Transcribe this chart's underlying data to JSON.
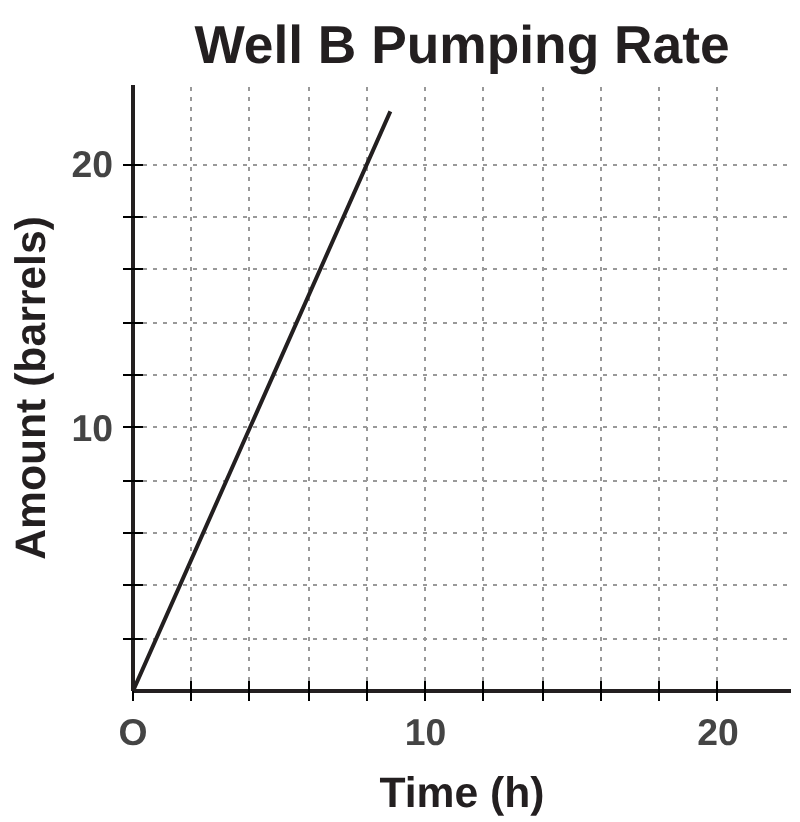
{
  "chart_data": {
    "type": "line",
    "title": "Well B Pumping Rate",
    "xlabel": "Time (h)",
    "ylabel": "Amount (barrels)",
    "x": [
      0,
      4,
      8.8
    ],
    "series": [
      {
        "color": "#231f20",
        "values": [
          0,
          10,
          22
        ]
      }
    ],
    "xlim": [
      0,
      22.5
    ],
    "ylim": [
      0,
      23
    ],
    "xticks": [
      {
        "value": 0,
        "label": "O"
      },
      {
        "value": 2,
        "label": null
      },
      {
        "value": 4,
        "label": null
      },
      {
        "value": 6,
        "label": null
      },
      {
        "value": 8,
        "label": null
      },
      10,
      {
        "value": 12,
        "label": null
      },
      {
        "value": 14,
        "label": null
      },
      {
        "value": 16,
        "label": null
      },
      {
        "value": 18,
        "label": null
      },
      20
    ],
    "yticks": [
      {
        "value": 2,
        "label": null
      },
      {
        "value": 4,
        "label": null
      },
      {
        "value": 6,
        "label": null
      },
      {
        "value": 8,
        "label": null
      },
      10,
      {
        "value": 12,
        "label": null
      },
      {
        "value": 14,
        "label": null
      },
      {
        "value": 16,
        "label": null
      },
      {
        "value": 18,
        "label": null
      },
      20
    ],
    "grid": true,
    "line_style": "solid"
  }
}
